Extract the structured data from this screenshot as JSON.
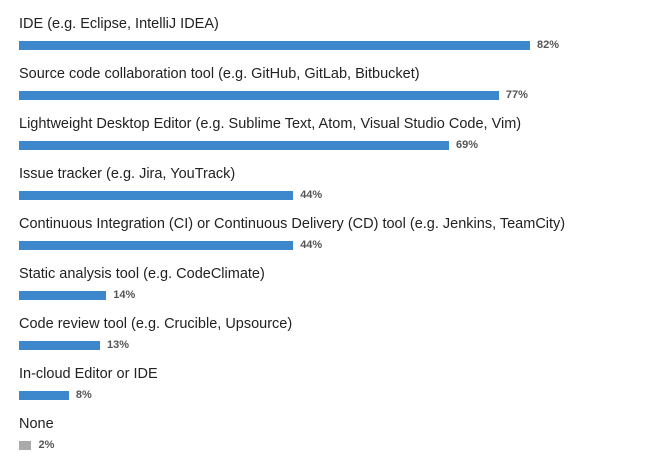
{
  "chart_data": {
    "type": "bar",
    "orientation": "horizontal",
    "categories": [
      "IDE (e.g. Eclipse, IntelliJ IDEA)",
      "Source code collaboration tool (e.g. GitHub, GitLab, Bitbucket)",
      "Lightweight Desktop Editor (e.g. Sublime Text, Atom, Visual Studio Code, Vim)",
      "Issue tracker (e.g. Jira, YouTrack)",
      "Continuous Integration (CI) or Continuous Delivery (CD) tool (e.g. Jenkins, TeamCity)",
      "Static analysis tool (e.g. CodeClimate)",
      "Code review tool (e.g. Crucible, Upsource)",
      "In-cloud Editor or IDE",
      "None"
    ],
    "values": [
      82,
      77,
      69,
      44,
      44,
      14,
      13,
      8,
      2
    ],
    "value_labels": [
      "82%",
      "77%",
      "69%",
      "44%",
      "44%",
      "14%",
      "13%",
      "8%",
      "2%"
    ],
    "unit": "%",
    "xlim": [
      0,
      100
    ],
    "grid": false,
    "legend": "none",
    "colors": {
      "bar": "#3d87cc",
      "none_bar": "#aaaaaa",
      "label": "#222222",
      "value": "#555555"
    }
  }
}
